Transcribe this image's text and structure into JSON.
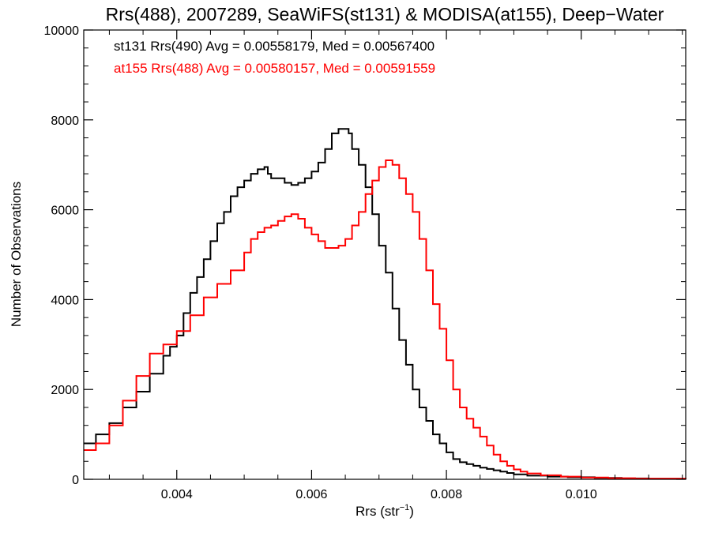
{
  "chart_data": {
    "type": "line",
    "title": "Rrs(488), 2007289, SeaWiFS(st131) & MODISA(at155), Deep−Water",
    "xlabel_main": "Rrs (str",
    "xlabel_sup": "−1",
    "xlabel_close": ")",
    "ylabel": "Number of Observations",
    "xlim": [
      0.00262,
      0.01155
    ],
    "ylim": [
      0,
      10000
    ],
    "x_ticks": [
      0.004,
      0.006,
      0.008,
      0.01
    ],
    "x_tick_labels": [
      "0.004",
      "0.006",
      "0.008",
      "0.010"
    ],
    "y_ticks": [
      0,
      2000,
      4000,
      6000,
      8000,
      10000
    ],
    "y_tick_labels": [
      "0",
      "2000",
      "4000",
      "6000",
      "8000",
      "10000"
    ],
    "series": [
      {
        "name": "st131 Rrs(490) Avg = 0.00558179, Med = 0.00567400",
        "color": "#000000",
        "x": [
          0.00262,
          0.0028,
          0.003,
          0.0032,
          0.0034,
          0.0036,
          0.0038,
          0.0039,
          0.004,
          0.0041,
          0.0042,
          0.0043,
          0.0044,
          0.0045,
          0.0046,
          0.0047,
          0.0048,
          0.0049,
          0.005,
          0.0051,
          0.0052,
          0.0053,
          0.00535,
          0.0054,
          0.0055,
          0.0056,
          0.0057,
          0.0058,
          0.0059,
          0.006,
          0.0061,
          0.0062,
          0.0063,
          0.0064,
          0.0065,
          0.00655,
          0.0066,
          0.0067,
          0.0068,
          0.0069,
          0.007,
          0.0071,
          0.0072,
          0.0073,
          0.0074,
          0.0075,
          0.0076,
          0.0077,
          0.0078,
          0.0079,
          0.008,
          0.0081,
          0.0082,
          0.0083,
          0.0084,
          0.0085,
          0.0086,
          0.0087,
          0.0088,
          0.0089,
          0.009,
          0.0092,
          0.0095,
          0.0098,
          0.0102,
          0.0106,
          0.011,
          0.01155
        ],
        "y": [
          800,
          1000,
          1250,
          1600,
          1950,
          2350,
          2750,
          2950,
          3200,
          3700,
          4150,
          4500,
          4900,
          5300,
          5700,
          5950,
          6300,
          6500,
          6650,
          6800,
          6900,
          6950,
          6800,
          6700,
          6700,
          6600,
          6550,
          6600,
          6700,
          6850,
          7050,
          7350,
          7700,
          7800,
          7800,
          7700,
          7350,
          7000,
          6500,
          5900,
          5200,
          4600,
          3800,
          3100,
          2550,
          2000,
          1600,
          1300,
          1000,
          800,
          600,
          450,
          380,
          340,
          300,
          260,
          230,
          200,
          170,
          140,
          110,
          80,
          60,
          45,
          30,
          20,
          12,
          8
        ]
      },
      {
        "name": "at155 Rrs(488) Avg = 0.00580157, Med = 0.00591559",
        "color": "#ff0000",
        "x": [
          0.00262,
          0.0028,
          0.003,
          0.0032,
          0.0034,
          0.0036,
          0.0038,
          0.004,
          0.0042,
          0.0044,
          0.0046,
          0.0048,
          0.005,
          0.0051,
          0.0052,
          0.0053,
          0.0054,
          0.0055,
          0.0056,
          0.0057,
          0.0058,
          0.0059,
          0.006,
          0.0061,
          0.0062,
          0.0063,
          0.0064,
          0.0065,
          0.0066,
          0.0067,
          0.0068,
          0.0069,
          0.007,
          0.0071,
          0.0072,
          0.0073,
          0.0074,
          0.0075,
          0.0076,
          0.0077,
          0.0078,
          0.0079,
          0.008,
          0.0081,
          0.0082,
          0.0083,
          0.0084,
          0.0085,
          0.0086,
          0.0087,
          0.0088,
          0.0089,
          0.009,
          0.0091,
          0.0092,
          0.0094,
          0.0097,
          0.01,
          0.0104,
          0.0108,
          0.01155
        ],
        "y": [
          650,
          800,
          1200,
          1750,
          2300,
          2800,
          3000,
          3300,
          3650,
          4050,
          4350,
          4650,
          5050,
          5350,
          5500,
          5600,
          5650,
          5750,
          5850,
          5900,
          5800,
          5600,
          5450,
          5300,
          5150,
          5150,
          5200,
          5350,
          5650,
          5950,
          6350,
          6650,
          6950,
          7100,
          7000,
          6700,
          6350,
          5950,
          5350,
          4650,
          3900,
          3350,
          2650,
          2000,
          1600,
          1350,
          1150,
          950,
          750,
          550,
          400,
          300,
          220,
          170,
          130,
          90,
          60,
          40,
          25,
          15,
          8
        ]
      }
    ]
  }
}
